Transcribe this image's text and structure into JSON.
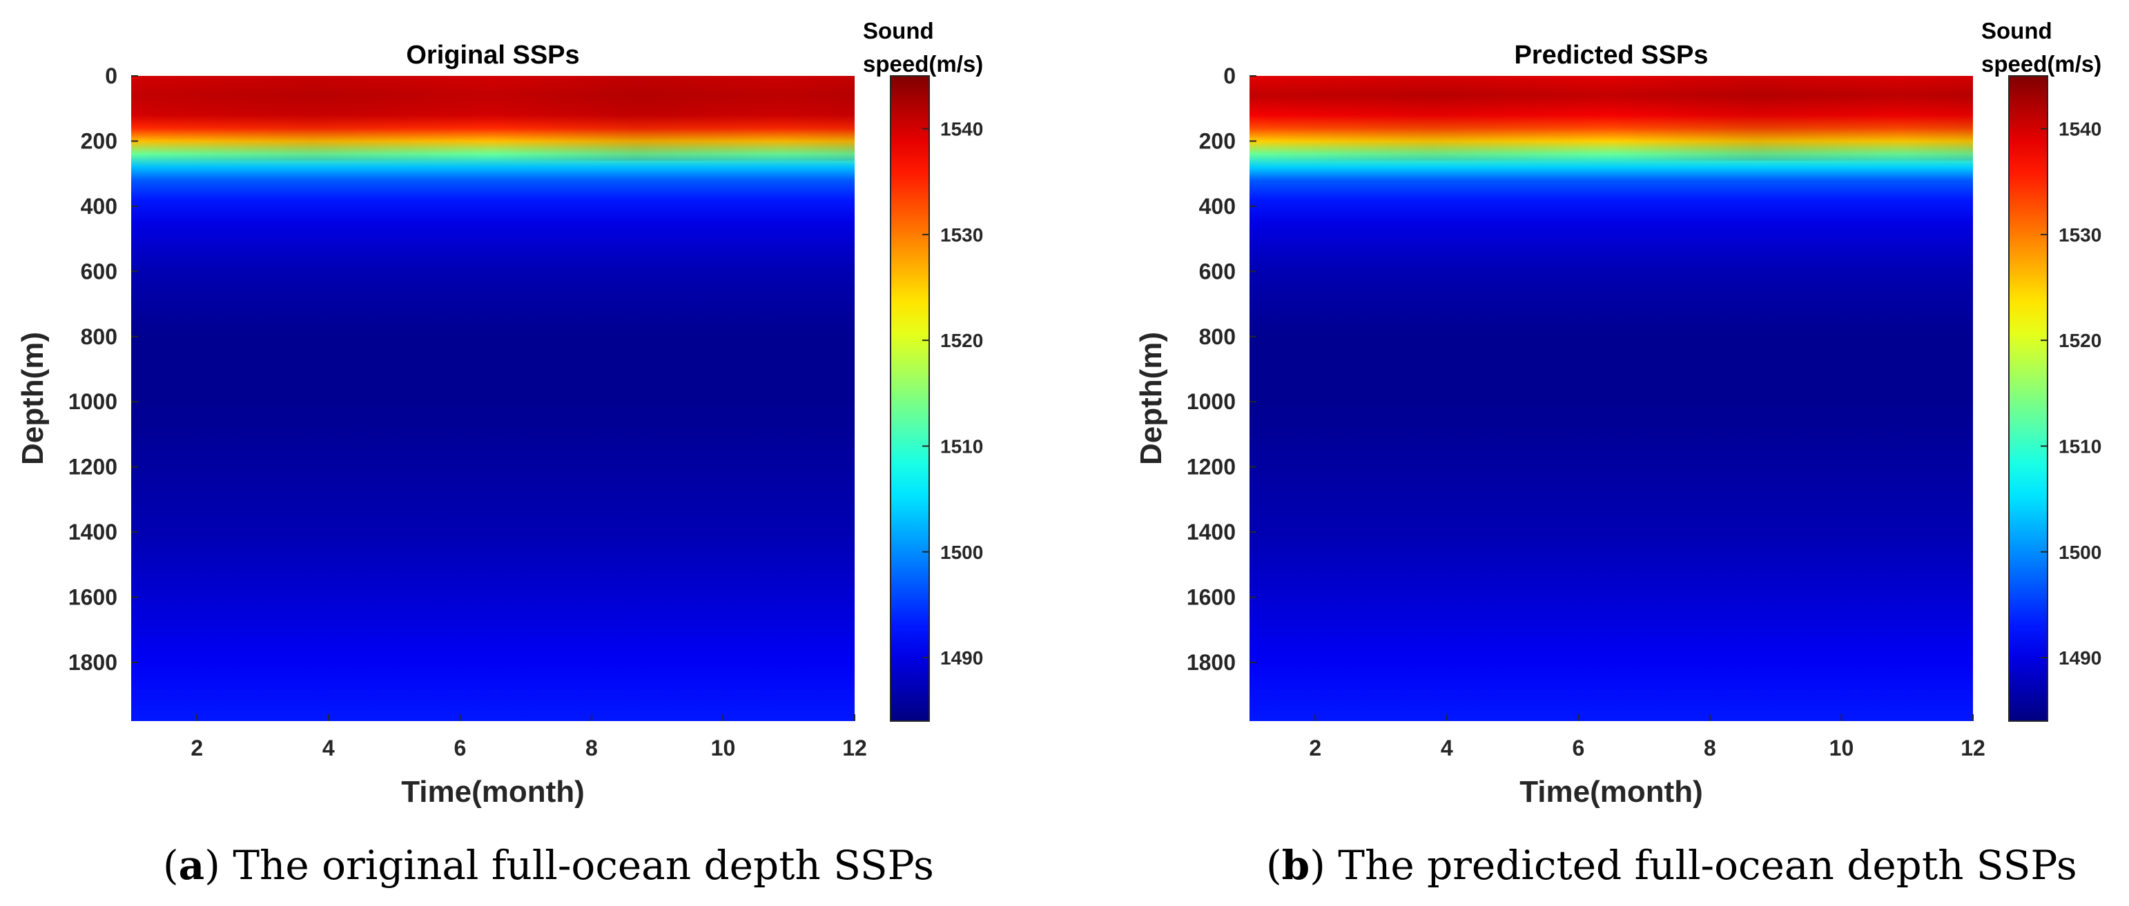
{
  "chart_data": [
    {
      "type": "heatmap",
      "title": "Original SSPs",
      "xlabel": "Time(month)",
      "ylabel": "Depth(m)",
      "xlim": [
        1,
        12
      ],
      "ylim": [
        0,
        1980
      ],
      "x_ticks": [
        2,
        4,
        6,
        8,
        10,
        12
      ],
      "y_ticks": [
        0,
        200,
        400,
        600,
        800,
        1000,
        1200,
        1400,
        1600,
        1800
      ],
      "colorbar": {
        "title_line1": "Sound",
        "title_line2": "speed(m/s)",
        "range": [
          1484,
          1545
        ],
        "ticks": [
          1490,
          1500,
          1510,
          1520,
          1530,
          1540
        ],
        "colormap": "jet"
      },
      "profile": {
        "depth_m": [
          0,
          60,
          120,
          160,
          200,
          240,
          280,
          320,
          380,
          450,
          600,
          800,
          1000,
          1200,
          1400,
          1600,
          1800,
          1980
        ],
        "speed_mps": [
          1540,
          1541,
          1540,
          1535,
          1526,
          1513,
          1503,
          1497,
          1493,
          1490,
          1487,
          1485,
          1485,
          1486,
          1487,
          1489,
          1491,
          1493
        ]
      },
      "caption_label": "a",
      "caption_text": "The original full-ocean depth SSPs"
    },
    {
      "type": "heatmap",
      "title": "Predicted SSPs",
      "xlabel": "Time(month)",
      "ylabel": "Depth(m)",
      "xlim": [
        1,
        12
      ],
      "ylim": [
        0,
        1980
      ],
      "x_ticks": [
        2,
        4,
        6,
        8,
        10,
        12
      ],
      "y_ticks": [
        0,
        200,
        400,
        600,
        800,
        1000,
        1200,
        1400,
        1600,
        1800
      ],
      "colorbar": {
        "title_line1": "Sound",
        "title_line2": "speed(m/s)",
        "range": [
          1484,
          1545
        ],
        "ticks": [
          1490,
          1500,
          1510,
          1520,
          1530,
          1540
        ],
        "colormap": "jet"
      },
      "profile": {
        "depth_m": [
          0,
          60,
          120,
          160,
          200,
          240,
          280,
          320,
          380,
          450,
          600,
          800,
          1000,
          1200,
          1400,
          1600,
          1800,
          1980
        ],
        "speed_mps": [
          1539,
          1541,
          1538,
          1533,
          1525,
          1513,
          1504,
          1497,
          1493,
          1490,
          1487,
          1485,
          1485,
          1486,
          1487,
          1489,
          1491,
          1493
        ]
      },
      "caption_label": "b",
      "caption_text": "The predicted full-ocean depth SSPs"
    }
  ]
}
